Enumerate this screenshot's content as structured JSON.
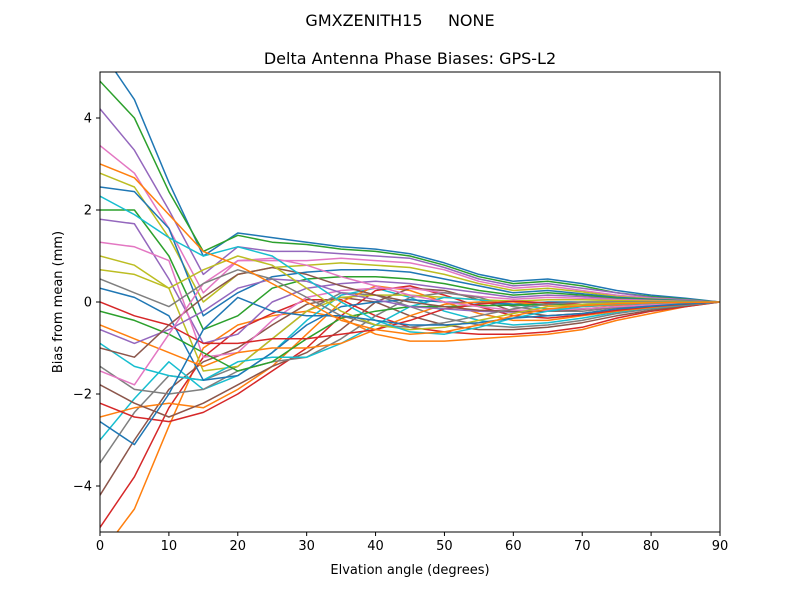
{
  "figure": {
    "suptitle": "GMXZENITH15     NONE"
  },
  "chart_data": {
    "type": "line",
    "title": "Delta Antenna Phase Biases: GPS-L2",
    "xlabel": "Elvation angle (degrees)",
    "ylabel": "Bias from mean (mm)",
    "xlim": [
      0,
      90
    ],
    "ylim": [
      -5,
      5
    ],
    "xticks": [
      0,
      10,
      20,
      30,
      40,
      50,
      60,
      70,
      80,
      90
    ],
    "yticks": [
      -4,
      -2,
      0,
      2,
      4
    ],
    "grid": false,
    "legend": "none",
    "x": [
      0,
      5,
      10,
      15,
      20,
      25,
      30,
      35,
      40,
      45,
      50,
      55,
      60,
      65,
      70,
      75,
      80,
      85,
      90
    ],
    "series": [
      {
        "values": [
          5.5,
          4.4,
          2.6,
          1.0,
          1.5,
          1.4,
          1.3,
          1.2,
          1.15,
          1.05,
          0.85,
          0.6,
          0.45,
          0.5,
          0.4,
          0.25,
          0.15,
          0.08,
          0.0
        ]
      },
      {
        "values": [
          -5.5,
          -4.5,
          -2.7,
          -1.0,
          -0.5,
          -0.3,
          -0.2,
          -0.35,
          -0.7,
          -0.85,
          -0.85,
          -0.8,
          -0.75,
          -0.7,
          -0.6,
          -0.4,
          -0.25,
          -0.1,
          0.0
        ]
      },
      {
        "values": [
          4.8,
          4.0,
          2.4,
          1.1,
          1.45,
          1.3,
          1.25,
          1.15,
          1.1,
          1.0,
          0.8,
          0.55,
          0.4,
          0.45,
          0.35,
          0.2,
          0.12,
          0.06,
          0.0
        ]
      },
      {
        "values": [
          -4.9,
          -3.8,
          -2.3,
          -1.2,
          -0.6,
          -0.25,
          0.05,
          0.05,
          -0.3,
          -0.55,
          -0.65,
          -0.7,
          -0.7,
          -0.65,
          -0.55,
          -0.35,
          -0.2,
          -0.1,
          0.0
        ]
      },
      {
        "values": [
          4.2,
          3.3,
          2.0,
          0.6,
          1.2,
          1.1,
          1.1,
          1.05,
          1.0,
          0.95,
          0.75,
          0.5,
          0.35,
          0.4,
          0.3,
          0.2,
          0.1,
          0.05,
          0.0
        ]
      },
      {
        "values": [
          -4.2,
          -3.0,
          -1.9,
          -1.3,
          -1.0,
          -0.5,
          -0.05,
          0.1,
          0.0,
          -0.3,
          -0.5,
          -0.6,
          -0.6,
          -0.55,
          -0.45,
          -0.3,
          -0.18,
          -0.08,
          0.0
        ]
      },
      {
        "values": [
          3.4,
          2.8,
          1.6,
          0.2,
          0.9,
          0.9,
          0.9,
          0.95,
          0.9,
          0.85,
          0.7,
          0.45,
          0.3,
          0.35,
          0.25,
          0.15,
          0.08,
          0.04,
          0.0
        ]
      },
      {
        "values": [
          -3.5,
          -2.4,
          -1.6,
          -1.7,
          -1.4,
          -0.8,
          -0.2,
          0.2,
          0.15,
          -0.1,
          -0.35,
          -0.5,
          -0.55,
          -0.5,
          -0.4,
          -0.25,
          -0.15,
          -0.07,
          0.0
        ]
      },
      {
        "values": [
          2.8,
          2.5,
          1.4,
          0.0,
          0.6,
          0.75,
          0.8,
          0.85,
          0.8,
          0.75,
          0.6,
          0.4,
          0.25,
          0.3,
          0.22,
          0.12,
          0.07,
          0.03,
          0.0
        ]
      },
      {
        "values": [
          -3.0,
          -2.1,
          -1.3,
          -1.9,
          -1.6,
          -1.1,
          -0.4,
          0.15,
          0.3,
          0.1,
          -0.2,
          -0.4,
          -0.5,
          -0.45,
          -0.35,
          -0.22,
          -0.13,
          -0.06,
          0.0
        ]
      },
      {
        "values": [
          2.5,
          2.4,
          1.6,
          -0.3,
          0.2,
          0.55,
          0.65,
          0.7,
          0.7,
          0.65,
          0.5,
          0.35,
          0.2,
          0.25,
          0.18,
          0.1,
          0.06,
          0.03,
          0.0
        ]
      },
      {
        "values": [
          -2.5,
          -2.3,
          -2.2,
          -2.3,
          -1.9,
          -1.4,
          -0.7,
          0.0,
          0.35,
          0.25,
          0.0,
          -0.25,
          -0.4,
          -0.4,
          -0.3,
          -0.2,
          -0.12,
          -0.05,
          0.0
        ]
      },
      {
        "values": [
          2.0,
          2.0,
          1.0,
          -0.6,
          -0.3,
          0.3,
          0.5,
          0.55,
          0.55,
          0.5,
          0.4,
          0.25,
          0.15,
          0.2,
          0.15,
          0.08,
          0.05,
          0.02,
          0.0
        ]
      },
      {
        "values": [
          -2.2,
          -2.5,
          -2.6,
          -2.4,
          -2.0,
          -1.5,
          -1.0,
          -0.3,
          0.25,
          0.35,
          0.15,
          -0.1,
          -0.3,
          -0.35,
          -0.28,
          -0.18,
          -0.1,
          -0.05,
          0.0
        ]
      },
      {
        "values": [
          1.8,
          1.7,
          0.5,
          -0.9,
          -0.7,
          0.0,
          0.3,
          0.4,
          0.45,
          0.4,
          0.3,
          0.2,
          0.1,
          0.15,
          0.12,
          0.06,
          0.04,
          0.02,
          0.0
        ]
      },
      {
        "values": [
          -1.8,
          -2.2,
          -2.5,
          -2.2,
          -1.8,
          -1.4,
          -1.1,
          -0.6,
          0.0,
          0.3,
          0.25,
          0.05,
          -0.2,
          -0.3,
          -0.25,
          -0.15,
          -0.09,
          -0.04,
          0.0
        ]
      },
      {
        "values": [
          1.3,
          1.2,
          0.9,
          -1.2,
          -1.1,
          -0.4,
          0.1,
          0.25,
          0.3,
          0.3,
          0.2,
          0.12,
          0.06,
          0.1,
          0.08,
          0.05,
          0.03,
          0.01,
          0.0
        ]
      },
      {
        "values": [
          -1.4,
          -1.9,
          -2.0,
          -1.9,
          -1.5,
          -1.3,
          -1.2,
          -0.8,
          -0.3,
          0.1,
          0.2,
          0.1,
          -0.1,
          -0.2,
          -0.2,
          -0.12,
          -0.07,
          -0.03,
          0.0
        ]
      },
      {
        "values": [
          0.7,
          0.6,
          0.3,
          -1.5,
          -1.4,
          -0.8,
          -0.2,
          0.1,
          0.15,
          0.15,
          0.1,
          0.05,
          0.02,
          0.05,
          0.05,
          0.03,
          0.02,
          0.01,
          0.0
        ]
      },
      {
        "values": [
          -0.9,
          -1.4,
          -1.6,
          -1.7,
          -1.3,
          -1.2,
          -1.2,
          -0.9,
          -0.5,
          -0.1,
          0.1,
          0.05,
          -0.05,
          -0.15,
          -0.15,
          -0.1,
          -0.06,
          -0.03,
          0.0
        ]
      },
      {
        "values": [
          0.3,
          0.1,
          -0.3,
          -1.7,
          -1.6,
          -1.1,
          -0.5,
          -0.1,
          0.0,
          0.05,
          0.0,
          -0.02,
          -0.05,
          0.0,
          0.0,
          0.0,
          0.0,
          0.0,
          0.0
        ]
      },
      {
        "values": [
          -0.5,
          -0.8,
          -1.1,
          -1.4,
          -1.1,
          -1.0,
          -1.0,
          -0.9,
          -0.6,
          -0.3,
          -0.05,
          0.0,
          0.0,
          -0.08,
          -0.1,
          -0.07,
          -0.04,
          -0.02,
          0.0
        ]
      },
      {
        "values": [
          -0.2,
          -0.4,
          -0.7,
          -1.1,
          -1.5,
          -1.3,
          -0.8,
          -0.35,
          -0.2,
          -0.1,
          -0.1,
          -0.08,
          -0.07,
          -0.05,
          -0.05,
          -0.03,
          -0.02,
          -0.01,
          0.0
        ]
      },
      {
        "values": [
          0.0,
          -0.3,
          -0.5,
          -0.9,
          -0.9,
          -0.8,
          -0.8,
          -0.7,
          -0.6,
          -0.4,
          -0.15,
          -0.05,
          0.02,
          -0.02,
          -0.05,
          -0.04,
          -0.02,
          -0.01,
          0.0
        ]
      },
      {
        "values": [
          -0.6,
          -0.9,
          -0.6,
          -0.2,
          0.3,
          0.5,
          0.45,
          0.2,
          0.05,
          -0.1,
          -0.15,
          -0.2,
          -0.22,
          -0.2,
          -0.15,
          -0.1,
          -0.06,
          -0.03,
          0.0
        ]
      },
      {
        "values": [
          -1.0,
          -1.2,
          -0.5,
          0.1,
          0.6,
          0.75,
          0.6,
          0.35,
          0.15,
          0.0,
          -0.1,
          -0.18,
          -0.2,
          -0.2,
          -0.16,
          -0.1,
          -0.06,
          -0.03,
          0.0
        ]
      },
      {
        "values": [
          -1.5,
          -1.8,
          -0.7,
          0.4,
          0.9,
          0.95,
          0.8,
          0.55,
          0.35,
          0.15,
          0.0,
          -0.1,
          -0.18,
          -0.18,
          -0.15,
          -0.1,
          -0.06,
          -0.03,
          0.0
        ]
      },
      {
        "values": [
          0.5,
          0.2,
          -0.1,
          0.4,
          0.7,
          0.5,
          0.1,
          -0.3,
          -0.5,
          -0.55,
          -0.45,
          -0.3,
          -0.15,
          -0.05,
          0.0,
          0.0,
          0.0,
          0.0,
          0.0
        ]
      },
      {
        "values": [
          1.0,
          0.8,
          0.3,
          0.7,
          1.0,
          0.8,
          0.3,
          -0.2,
          -0.5,
          -0.6,
          -0.55,
          -0.4,
          -0.25,
          -0.1,
          -0.05,
          -0.02,
          -0.01,
          0.0,
          0.0
        ]
      },
      {
        "values": [
          2.3,
          1.9,
          1.4,
          1.0,
          1.2,
          1.0,
          0.5,
          0.0,
          -0.4,
          -0.65,
          -0.7,
          -0.55,
          -0.35,
          -0.2,
          -0.1,
          -0.05,
          -0.03,
          -0.01,
          0.0
        ]
      },
      {
        "values": [
          -2.6,
          -3.1,
          -2.0,
          -0.6,
          0.1,
          -0.2,
          -0.3,
          -0.3,
          -0.4,
          -0.5,
          -0.5,
          -0.45,
          -0.35,
          -0.3,
          -0.25,
          -0.15,
          -0.09,
          -0.04,
          0.0
        ]
      },
      {
        "values": [
          3.0,
          2.7,
          1.9,
          1.1,
          0.8,
          0.4,
          0.0,
          -0.4,
          -0.6,
          -0.7,
          -0.65,
          -0.5,
          -0.3,
          -0.15,
          -0.08,
          -0.04,
          -0.02,
          -0.01,
          0.0
        ]
      }
    ]
  }
}
